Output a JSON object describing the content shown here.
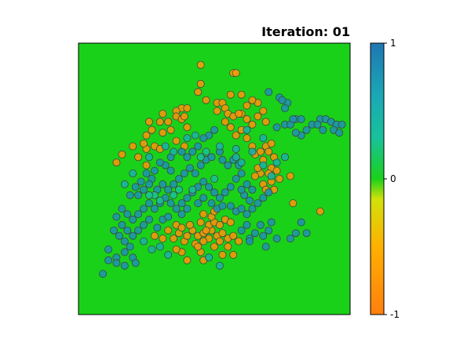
{
  "chart_data": {
    "type": "scatter",
    "title": "Iteration: 01",
    "background_color": "#1ad11a",
    "colorbar": {
      "min": -1,
      "max": 1,
      "tick_labels": [
        "1",
        "0",
        "-1"
      ],
      "tick_values": [
        1,
        0,
        -1
      ],
      "colormap": [
        {
          "value": -1,
          "color": "#ff7f0e"
        },
        {
          "value": -0.5,
          "color": "#ffb000"
        },
        {
          "value": -0.15,
          "color": "#d2e10a"
        },
        {
          "value": 0,
          "color": "#1ad11a"
        },
        {
          "value": 0.3,
          "color": "#18c29a"
        },
        {
          "value": 0.6,
          "color": "#1aa9b5"
        },
        {
          "value": 1,
          "color": "#1f77b4"
        }
      ]
    },
    "xlim": [
      0,
      100
    ],
    "ylim": [
      0,
      100
    ],
    "points": [
      [
        45,
        92,
        -0.7
      ],
      [
        57,
        89,
        -0.7
      ],
      [
        58,
        89,
        -0.7
      ],
      [
        45,
        85,
        -0.8
      ],
      [
        44,
        82,
        -0.8
      ],
      [
        38,
        76,
        -0.8
      ],
      [
        40,
        76,
        -0.8
      ],
      [
        36,
        75,
        -0.8
      ],
      [
        36,
        73,
        -0.8
      ],
      [
        38,
        72,
        -0.8
      ],
      [
        39,
        73,
        -0.8
      ],
      [
        31,
        74,
        -0.8
      ],
      [
        33,
        71,
        -0.8
      ],
      [
        40,
        69,
        -0.8
      ],
      [
        26,
        71,
        -0.8
      ],
      [
        30,
        71,
        -0.8
      ],
      [
        27,
        68,
        -0.8
      ],
      [
        25,
        66,
        -0.8
      ],
      [
        31,
        67,
        -0.8
      ],
      [
        34,
        68,
        -0.8
      ],
      [
        36,
        64,
        -0.8
      ],
      [
        39,
        62,
        -0.8
      ],
      [
        25,
        61,
        -0.8
      ],
      [
        24,
        63,
        -0.8
      ],
      [
        28,
        62,
        -0.8
      ],
      [
        30,
        61,
        -0.8
      ],
      [
        20,
        62,
        -0.8
      ],
      [
        16,
        59,
        -0.8
      ],
      [
        14,
        56,
        -0.8
      ],
      [
        22,
        58,
        -0.8
      ],
      [
        25,
        55,
        -0.8
      ],
      [
        51,
        78,
        -0.8
      ],
      [
        53,
        78,
        -0.8
      ],
      [
        54,
        76,
        -0.8
      ],
      [
        51,
        75,
        -0.8
      ],
      [
        55,
        74,
        -0.8
      ],
      [
        57,
        73,
        -0.8
      ],
      [
        60,
        74,
        -0.8
      ],
      [
        62,
        77,
        -0.8
      ],
      [
        66,
        78,
        -0.8
      ],
      [
        62,
        72,
        -0.8
      ],
      [
        64,
        70,
        -0.8
      ],
      [
        66,
        73,
        -0.8
      ],
      [
        68,
        75,
        -0.8
      ],
      [
        69,
        71,
        -0.8
      ],
      [
        54,
        71,
        -0.8
      ],
      [
        56,
        69,
        -0.8
      ],
      [
        58,
        66,
        -0.8
      ],
      [
        60,
        68,
        -0.8
      ],
      [
        62,
        65,
        -0.8
      ],
      [
        64,
        62,
        -0.8
      ],
      [
        65,
        59,
        -0.8
      ],
      [
        67,
        60,
        -0.8
      ],
      [
        68,
        57,
        -0.8
      ],
      [
        69,
        62,
        -0.8
      ],
      [
        70,
        60,
        -0.8
      ],
      [
        72,
        58,
        -0.8
      ],
      [
        71,
        54,
        -0.8
      ],
      [
        73,
        53,
        -0.8
      ],
      [
        74,
        50,
        -0.8
      ],
      [
        71,
        49,
        -0.8
      ],
      [
        70,
        52,
        -0.8
      ],
      [
        67,
        52,
        -0.8
      ],
      [
        66,
        54,
        -0.8
      ],
      [
        65,
        51,
        -0.8
      ],
      [
        68,
        48,
        -0.8
      ],
      [
        69,
        46,
        -0.8
      ],
      [
        72,
        46,
        -0.8
      ],
      [
        78,
        51,
        -0.8
      ],
      [
        79,
        41,
        -0.8
      ],
      [
        89,
        38,
        -0.8
      ],
      [
        71,
        63,
        -0.8
      ],
      [
        59,
        74,
        -0.8
      ],
      [
        56,
        81,
        -0.8
      ],
      [
        47,
        79,
        -0.8
      ],
      [
        60,
        81,
        -0.8
      ],
      [
        64,
        79,
        -0.8
      ],
      [
        28,
        29,
        -0.8
      ],
      [
        31,
        28,
        -0.8
      ],
      [
        33,
        31,
        -0.8
      ],
      [
        35,
        28,
        -0.8
      ],
      [
        37,
        30,
        -0.8
      ],
      [
        39,
        27,
        -0.8
      ],
      [
        40,
        29,
        -0.8
      ],
      [
        42,
        31,
        -0.8
      ],
      [
        44,
        29,
        -0.8
      ],
      [
        46,
        30,
        -0.8
      ],
      [
        48,
        28,
        -0.8
      ],
      [
        49,
        31,
        -0.8
      ],
      [
        51,
        29,
        -0.8
      ],
      [
        53,
        30,
        -0.8
      ],
      [
        55,
        28,
        -0.8
      ],
      [
        57,
        29,
        -0.8
      ],
      [
        59,
        27,
        -0.8
      ],
      [
        36,
        33,
        -0.8
      ],
      [
        38,
        32,
        -0.8
      ],
      [
        41,
        33,
        -0.8
      ],
      [
        45,
        34,
        -0.8
      ],
      [
        48,
        33,
        -0.8
      ],
      [
        50,
        34,
        -0.8
      ],
      [
        52,
        33,
        -0.8
      ],
      [
        54,
        35,
        -0.8
      ],
      [
        56,
        34,
        -0.8
      ],
      [
        46,
        37,
        -0.8
      ],
      [
        49,
        36,
        -0.8
      ],
      [
        50,
        38,
        -0.8
      ],
      [
        47,
        31,
        -0.8
      ],
      [
        43,
        26,
        -0.8
      ],
      [
        45,
        23,
        -0.8
      ],
      [
        38,
        23,
        -0.8
      ],
      [
        40,
        20,
        -0.8
      ],
      [
        46,
        20,
        -0.8
      ],
      [
        53,
        22,
        -0.8
      ],
      [
        57,
        22,
        -0.8
      ],
      [
        55,
        25,
        -0.8
      ],
      [
        50,
        25,
        -0.8
      ],
      [
        36,
        24,
        -0.8
      ],
      [
        44,
        25,
        -0.8
      ],
      [
        52,
        27,
        -0.8
      ],
      [
        46,
        27,
        -0.8
      ],
      [
        48,
        66,
        0.8
      ],
      [
        50,
        68,
        0.8
      ],
      [
        46,
        65,
        0.8
      ],
      [
        44,
        62,
        0.8
      ],
      [
        42,
        60,
        0.8
      ],
      [
        40,
        58,
        0.8
      ],
      [
        38,
        60,
        0.8
      ],
      [
        34,
        58,
        0.8
      ],
      [
        32,
        55,
        0.8
      ],
      [
        34,
        53,
        0.8
      ],
      [
        30,
        56,
        0.8
      ],
      [
        28,
        53,
        0.8
      ],
      [
        27,
        50,
        0.8
      ],
      [
        25,
        52,
        0.8
      ],
      [
        23,
        49,
        0.8
      ],
      [
        21,
        47,
        0.8
      ],
      [
        19,
        44,
        0.8
      ],
      [
        22,
        44,
        0.8
      ],
      [
        24,
        46,
        0.8
      ],
      [
        26,
        48,
        0.8
      ],
      [
        29,
        46,
        0.8
      ],
      [
        31,
        48,
        0.8
      ],
      [
        33,
        46,
        0.8
      ],
      [
        35,
        48,
        0.8
      ],
      [
        37,
        50,
        0.8
      ],
      [
        39,
        52,
        0.8
      ],
      [
        41,
        54,
        0.8
      ],
      [
        43,
        52,
        0.8
      ],
      [
        45,
        55,
        0.8
      ],
      [
        47,
        57,
        0.8
      ],
      [
        49,
        58,
        0.8
      ],
      [
        52,
        60,
        0.8
      ],
      [
        53,
        57,
        0.8
      ],
      [
        55,
        55,
        0.8
      ],
      [
        57,
        57,
        0.8
      ],
      [
        59,
        55,
        0.8
      ],
      [
        60,
        52,
        0.8
      ],
      [
        58,
        50,
        0.8
      ],
      [
        56,
        47,
        0.8
      ],
      [
        54,
        45,
        0.8
      ],
      [
        52,
        43,
        0.8
      ],
      [
        50,
        45,
        0.8
      ],
      [
        48,
        47,
        0.8
      ],
      [
        46,
        49,
        0.8
      ],
      [
        44,
        47,
        0.8
      ],
      [
        42,
        45,
        0.8
      ],
      [
        40,
        43,
        0.8
      ],
      [
        38,
        41,
        0.8
      ],
      [
        36,
        39,
        0.8
      ],
      [
        34,
        41,
        0.8
      ],
      [
        32,
        43,
        0.8
      ],
      [
        30,
        41,
        0.8
      ],
      [
        28,
        39,
        0.8
      ],
      [
        26,
        41,
        0.8
      ],
      [
        24,
        39,
        0.8
      ],
      [
        22,
        37,
        0.8
      ],
      [
        20,
        35,
        0.8
      ],
      [
        18,
        37,
        0.8
      ],
      [
        16,
        39,
        0.8
      ],
      [
        14,
        36,
        0.8
      ],
      [
        16,
        33,
        0.8
      ],
      [
        18,
        31,
        0.8
      ],
      [
        20,
        29,
        0.8
      ],
      [
        22,
        31,
        0.8
      ],
      [
        24,
        33,
        0.8
      ],
      [
        26,
        35,
        0.8
      ],
      [
        19,
        25,
        0.8
      ],
      [
        17,
        27,
        0.8
      ],
      [
        15,
        29,
        0.8
      ],
      [
        13,
        31,
        0.8
      ],
      [
        11,
        24,
        0.8
      ],
      [
        14,
        21,
        0.8
      ],
      [
        17,
        23,
        0.8
      ],
      [
        20,
        21,
        0.8
      ],
      [
        21,
        19,
        0.8
      ],
      [
        9,
        15,
        0.8
      ],
      [
        11,
        20,
        0.8
      ],
      [
        14,
        19,
        0.8
      ],
      [
        17,
        18,
        0.8
      ],
      [
        29,
        32,
        0.8
      ],
      [
        31,
        35,
        0.8
      ],
      [
        33,
        36,
        0.8
      ],
      [
        38,
        37,
        0.8
      ],
      [
        40,
        39,
        0.8
      ],
      [
        44,
        41,
        0.8
      ],
      [
        46,
        43,
        0.8
      ],
      [
        49,
        41,
        0.8
      ],
      [
        51,
        39,
        0.8
      ],
      [
        53,
        40,
        0.8
      ],
      [
        56,
        40,
        0.8
      ],
      [
        58,
        38,
        0.8
      ],
      [
        60,
        39,
        0.8
      ],
      [
        62,
        37,
        0.8
      ],
      [
        64,
        39,
        0.8
      ],
      [
        66,
        41,
        0.8
      ],
      [
        68,
        43,
        0.8
      ],
      [
        70,
        45,
        0.8
      ],
      [
        63,
        42,
        0.8
      ],
      [
        61,
        44,
        0.8
      ],
      [
        60,
        46,
        0.8
      ],
      [
        62,
        48,
        0.8
      ],
      [
        64,
        46,
        0.8
      ],
      [
        62,
        33,
        0.8
      ],
      [
        60,
        31,
        0.8
      ],
      [
        63,
        28,
        0.8
      ],
      [
        65,
        30,
        0.8
      ],
      [
        67,
        33,
        0.8
      ],
      [
        68,
        29,
        0.8
      ],
      [
        70,
        31,
        0.8
      ],
      [
        71,
        34,
        0.8
      ],
      [
        73,
        28,
        0.8
      ],
      [
        78,
        28,
        0.8
      ],
      [
        80,
        30,
        0.8
      ],
      [
        82,
        34,
        0.8
      ],
      [
        84,
        30,
        0.8
      ],
      [
        69,
        25,
        0.8
      ],
      [
        63,
        27,
        0.8
      ],
      [
        64,
        60,
        0.5
      ],
      [
        68,
        65,
        0.5
      ],
      [
        73,
        69,
        0.8
      ],
      [
        76,
        70,
        0.8
      ],
      [
        78,
        70,
        0.8
      ],
      [
        80,
        72,
        0.8
      ],
      [
        82,
        72,
        0.8
      ],
      [
        77,
        78,
        0.8
      ],
      [
        76,
        76,
        0.8
      ],
      [
        74,
        80,
        0.8
      ],
      [
        70,
        82,
        0.8
      ],
      [
        79,
        72,
        0.8
      ],
      [
        84,
        68,
        0.8
      ],
      [
        86,
        70,
        0.8
      ],
      [
        89,
        72,
        0.8
      ],
      [
        91,
        72,
        0.8
      ],
      [
        93,
        71,
        0.8
      ],
      [
        95,
        70,
        0.8
      ],
      [
        97,
        70,
        0.8
      ],
      [
        94,
        68,
        0.8
      ],
      [
        96,
        67,
        0.8
      ],
      [
        90,
        68,
        0.8
      ],
      [
        88,
        70,
        0.8
      ],
      [
        82,
        66,
        0.8
      ],
      [
        80,
        67,
        0.8
      ],
      [
        75,
        79,
        0.8
      ],
      [
        62,
        68,
        0.5
      ],
      [
        58,
        61,
        0.5
      ],
      [
        30,
        42,
        0.3
      ],
      [
        28,
        44,
        0.3
      ],
      [
        26,
        44,
        0.3
      ],
      [
        35,
        44,
        0.3
      ],
      [
        37,
        46,
        0.3
      ],
      [
        42,
        46,
        0.3
      ],
      [
        45,
        58,
        0.3
      ],
      [
        47,
        60,
        0.3
      ],
      [
        50,
        50,
        0.3
      ],
      [
        32,
        62,
        0.5
      ],
      [
        35,
        60,
        0.5
      ],
      [
        40,
        65,
        0.5
      ],
      [
        43,
        66,
        0.5
      ],
      [
        52,
        62,
        0.5
      ],
      [
        58,
        58,
        0.5
      ],
      [
        60,
        56,
        0.5
      ],
      [
        68,
        55,
        0.5
      ],
      [
        71,
        51,
        0.5
      ],
      [
        73,
        56,
        0.5
      ],
      [
        76,
        58,
        0.5
      ],
      [
        26,
        58,
        0.5
      ],
      [
        20,
        52,
        0.5
      ],
      [
        17,
        48,
        0.5
      ],
      [
        33,
        22,
        0.5
      ],
      [
        30,
        25,
        0.5
      ],
      [
        27,
        24,
        0.5
      ],
      [
        24,
        27,
        0.5
      ],
      [
        48,
        21,
        0.5
      ],
      [
        52,
        18,
        0.5
      ]
    ]
  }
}
